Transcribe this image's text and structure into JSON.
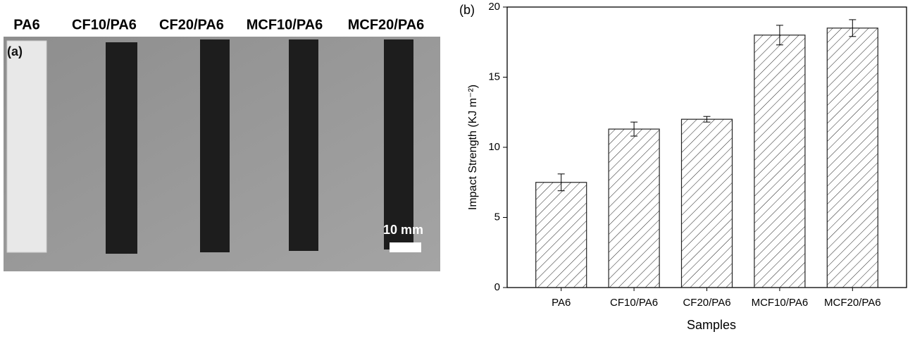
{
  "photo": {
    "panel_label": "(a)",
    "sample_labels": [
      "PA6",
      "CF10/PA6",
      "CF20/PA6",
      "MCF10/PA6",
      "MCF20/PA6"
    ],
    "scale_bar_label": "10 mm"
  },
  "chart_data": {
    "type": "bar",
    "panel_label": "(b)",
    "x_label": "Samples",
    "y_label": "Impact Strength (KJ m⁻²)",
    "categories": [
      "PA6",
      "CF10/PA6",
      "CF20/PA6",
      "MCF10/PA6",
      "MCF20/PA6"
    ],
    "values": [
      7.5,
      11.3,
      12.0,
      18.0,
      18.5
    ],
    "errors": [
      0.6,
      0.5,
      0.2,
      0.7,
      0.6
    ],
    "color": "#222222",
    "ylim": [
      0,
      20
    ],
    "yticks": [
      0,
      5,
      10,
      15,
      20
    ]
  }
}
